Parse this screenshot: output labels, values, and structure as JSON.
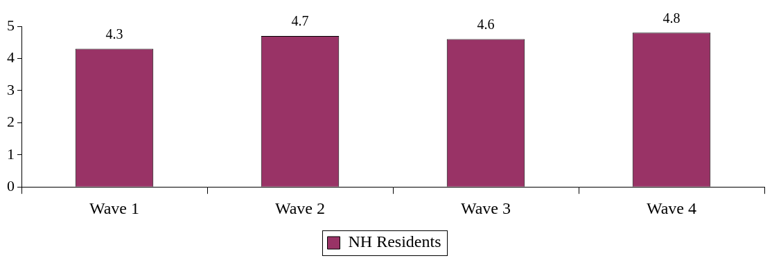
{
  "chart_data": {
    "type": "bar",
    "categories": [
      "Wave 1",
      "Wave 2",
      "Wave 3",
      "Wave 4"
    ],
    "series": [
      {
        "name": "NH Residents",
        "color": "#993366",
        "values": [
          4.3,
          4.7,
          4.6,
          4.8
        ]
      }
    ],
    "ylim": [
      0,
      5
    ],
    "yticks": [
      0,
      1,
      2,
      3,
      4,
      5
    ],
    "grid": false,
    "data_labels": true,
    "legend": "bottom"
  }
}
